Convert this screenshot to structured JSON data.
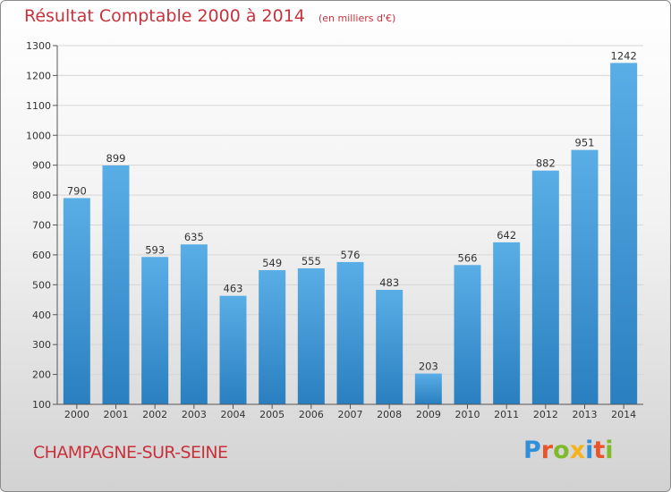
{
  "header": {
    "title": "Résultat Comptable 2000 à 2014",
    "subtitle": "(en milliers d'€)"
  },
  "footer": {
    "city": "CHAMPAGNE-SUR-SEINE",
    "brand": "Proxiti",
    "brand_colors": [
      "#2f8fd8",
      "#e8542b",
      "#7fba2a",
      "#f5b21b",
      "#2f8fd8",
      "#e8542b",
      "#7fba2a"
    ]
  },
  "colors": {
    "bar_light": "#5aaee6",
    "bar_dark": "#2a7fc0",
    "text": "#333333",
    "accent": "#c8323c"
  },
  "chart_data": {
    "type": "bar",
    "title": "Résultat Comptable 2000 à 2014",
    "subtitle": "(en milliers d'€)",
    "xlabel": "",
    "ylabel": "",
    "categories": [
      "2000",
      "2001",
      "2002",
      "2003",
      "2004",
      "2005",
      "2006",
      "2007",
      "2008",
      "2009",
      "2010",
      "2011",
      "2012",
      "2013",
      "2014"
    ],
    "values": [
      790,
      899,
      593,
      635,
      463,
      549,
      555,
      576,
      483,
      203,
      566,
      642,
      882,
      951,
      1242
    ],
    "ylim": [
      100,
      1300
    ],
    "yticks": [
      100,
      200,
      300,
      400,
      500,
      600,
      700,
      800,
      900,
      1000,
      1100,
      1200,
      1300
    ],
    "grid": true
  }
}
